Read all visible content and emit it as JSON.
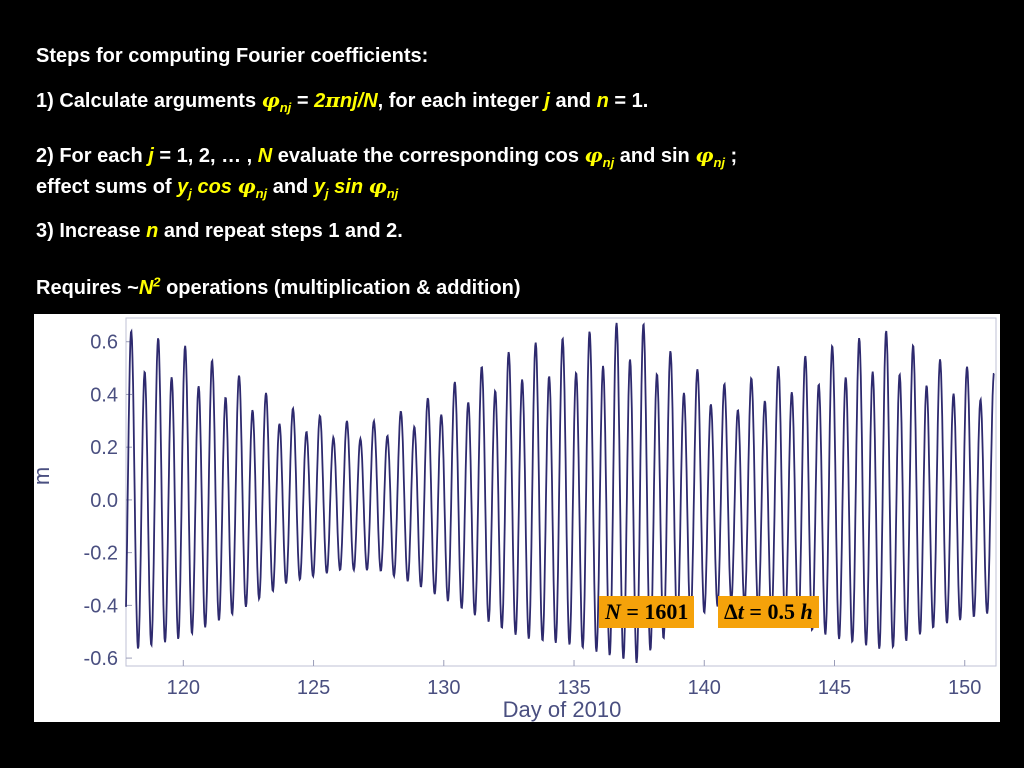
{
  "slide": {
    "heading": "Steps for computing Fourier coefficients:",
    "step1": {
      "prefix": "1) Calculate arguments ",
      "phi": "φ",
      "sub": "nj",
      "eq": " = ",
      "expr_two": "2",
      "expr_pi": "π",
      "expr_rest": "nj/N",
      "mid": ", for each integer ",
      "j": "j",
      "and": " and ",
      "n": "n",
      "tail": " = 1."
    },
    "step2": {
      "prefix": "2) For each ",
      "j": "j",
      "range": " = 1, 2, … , ",
      "N": "N",
      "mid": " evaluate the corresponding cos ",
      "phi": "φ",
      "sub": "nj",
      "and_sin": "  and sin ",
      "semicolon": " ;",
      "line2_prefix": "effect sums of ",
      "y": "y",
      "ysub": "j",
      "cos": " cos ",
      "and": "  and ",
      "sin": " sin "
    },
    "step3": {
      "prefix": "3) Increase ",
      "n": "n",
      "tail": " and repeat steps 1 and 2."
    },
    "requires": {
      "prefix": "Requires ",
      "tilde": "~",
      "N": "N",
      "sup": "2",
      "tail": " operations (multiplication & addition)"
    }
  },
  "badges": {
    "n_label": "N",
    "n_eq": " = 1601",
    "dt_delta": "Δ",
    "dt_t": "t",
    "dt_eq": " = 0.5 ",
    "dt_unit": "h"
  },
  "chart_data": {
    "type": "line",
    "xlabel": "Day of 2010",
    "ylabel": "m",
    "xlim": [
      117.8,
      151.2
    ],
    "ylim": [
      -0.63,
      0.69
    ],
    "xticks": [
      "120",
      "125",
      "130",
      "135",
      "140",
      "145",
      "150"
    ],
    "yticks": [
      "0.6",
      "0.4",
      "0.2",
      "0.0",
      "-0.2",
      "-0.4",
      "-0.6"
    ],
    "grid": false,
    "line_color": "#2e2a6e",
    "badge_color": "#f5a20a",
    "series": [
      {
        "sampling_hours": 0.5,
        "n_points": 1601,
        "model": "y = A(t)·cos(2π(t−t0)/P) + B(t)·cos(4π(t−t0)/P) + c",
        "period_days": 1.0351,
        "diurnal_ratio": 0.12,
        "offset": 0.0,
        "envelope_days": [
          118,
          120,
          122,
          124,
          126,
          127.5,
          129,
          131,
          133,
          135,
          137.4,
          139,
          141,
          143,
          145,
          147,
          149,
          151
        ],
        "envelope_amplitude": [
          0.6,
          0.55,
          0.45,
          0.33,
          0.28,
          0.28,
          0.34,
          0.45,
          0.55,
          0.58,
          0.65,
          0.5,
          0.4,
          0.48,
          0.55,
          0.6,
          0.5,
          0.45
        ]
      }
    ]
  }
}
